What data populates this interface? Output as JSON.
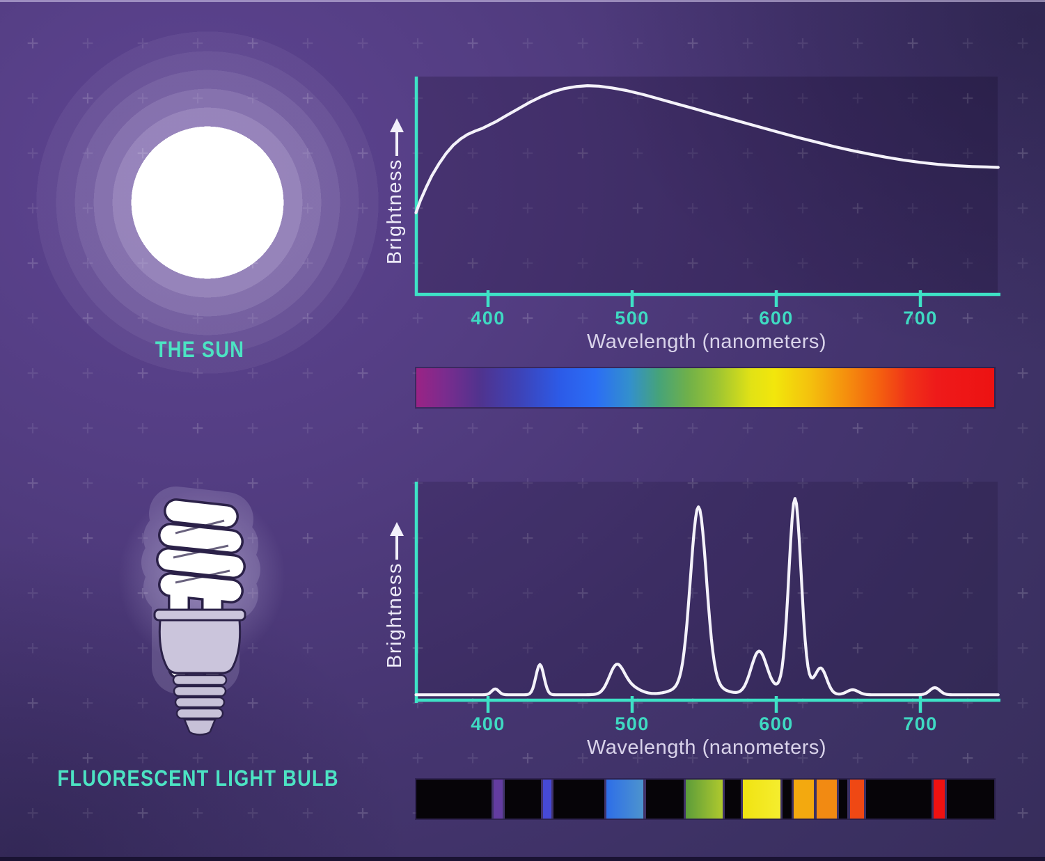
{
  "labels": {
    "sun_title": "THE SUN",
    "bulb_title": "FLUORESCENT LIGHT BULB"
  },
  "colors": {
    "axis": "#3ee2c6",
    "tick_text": "#3fd9c2",
    "curve": "#f4f2fa",
    "title_text": "#4ce3c3",
    "axis_label_text": "#d9d3ea",
    "background_purple": "#4a3878",
    "plot_overlay": "rgba(12,6,34,0.2)"
  },
  "chart_data": [
    {
      "type": "line",
      "name": "sun-spectrum",
      "title": "THE SUN",
      "xlabel": "Wavelength (nanometers)",
      "ylabel": "Brightness",
      "x_ticks": [
        400,
        500,
        600,
        700
      ],
      "x_range_nm": [
        350,
        754
      ],
      "y_range": [
        0,
        1
      ],
      "grid": false,
      "legend": "none",
      "points": [
        [
          350,
          0.375
        ],
        [
          353,
          0.43
        ],
        [
          357,
          0.49
        ],
        [
          361,
          0.545
        ],
        [
          366,
          0.6
        ],
        [
          371,
          0.648
        ],
        [
          376,
          0.686
        ],
        [
          381,
          0.714
        ],
        [
          386,
          0.735
        ],
        [
          391,
          0.75
        ],
        [
          396,
          0.762
        ],
        [
          400,
          0.775
        ],
        [
          406,
          0.795
        ],
        [
          413,
          0.822
        ],
        [
          421,
          0.852
        ],
        [
          429,
          0.882
        ],
        [
          437,
          0.908
        ],
        [
          445,
          0.93
        ],
        [
          453,
          0.945
        ],
        [
          461,
          0.954
        ],
        [
          469,
          0.958
        ],
        [
          477,
          0.956
        ],
        [
          486,
          0.948
        ],
        [
          496,
          0.936
        ],
        [
          508,
          0.917
        ],
        [
          520,
          0.895
        ],
        [
          532,
          0.873
        ],
        [
          544,
          0.851
        ],
        [
          556,
          0.828
        ],
        [
          568,
          0.806
        ],
        [
          580,
          0.784
        ],
        [
          592,
          0.762
        ],
        [
          604,
          0.74
        ],
        [
          616,
          0.719
        ],
        [
          628,
          0.699
        ],
        [
          640,
          0.679
        ],
        [
          652,
          0.661
        ],
        [
          664,
          0.645
        ],
        [
          676,
          0.63
        ],
        [
          688,
          0.617
        ],
        [
          700,
          0.606
        ],
        [
          712,
          0.597
        ],
        [
          724,
          0.591
        ],
        [
          736,
          0.587
        ],
        [
          746,
          0.585
        ],
        [
          754,
          0.583
        ]
      ]
    },
    {
      "type": "line",
      "name": "fluorescent-spectrum",
      "title": "FLUORESCENT LIGHT BULB",
      "xlabel": "Wavelength (nanometers)",
      "ylabel": "Brightness",
      "x_ticks": [
        400,
        500,
        600,
        700
      ],
      "x_range_nm": [
        350,
        754
      ],
      "y_range": [
        0,
        1
      ],
      "grid": false,
      "legend": "none",
      "baseline": 0.006,
      "peaks_nm_height_sigma": [
        [
          405,
          0.028,
          2.5
        ],
        [
          436,
          0.145,
          2.8
        ],
        [
          489,
          0.115,
          5.0
        ],
        [
          496,
          0.045,
          8.0
        ],
        [
          546,
          0.84,
          5.5
        ],
        [
          546,
          0.06,
          13.0
        ],
        [
          588,
          0.205,
          5.5
        ],
        [
          613,
          0.89,
          4.2
        ],
        [
          613,
          0.05,
          11.0
        ],
        [
          631,
          0.115,
          4.0
        ],
        [
          653,
          0.024,
          4.0
        ],
        [
          710,
          0.034,
          3.5
        ]
      ]
    }
  ],
  "spectrum_bars": {
    "continuous": {
      "nm_range": [
        350,
        754
      ],
      "stops": [
        [
          0.0,
          "#9a2385"
        ],
        [
          0.05,
          "#7a2c8e"
        ],
        [
          0.11,
          "#50338e"
        ],
        [
          0.18,
          "#3d43b8"
        ],
        [
          0.25,
          "#2c5be8"
        ],
        [
          0.31,
          "#2b6df5"
        ],
        [
          0.37,
          "#3390cc"
        ],
        [
          0.42,
          "#46a379"
        ],
        [
          0.47,
          "#6fb04a"
        ],
        [
          0.52,
          "#9cc433"
        ],
        [
          0.58,
          "#e2e215"
        ],
        [
          0.62,
          "#f2e60c"
        ],
        [
          0.68,
          "#f4c20d"
        ],
        [
          0.74,
          "#f5920d"
        ],
        [
          0.8,
          "#f4610f"
        ],
        [
          0.85,
          "#f03318"
        ],
        [
          0.9,
          "#ee1a1a"
        ],
        [
          1.0,
          "#ed1212"
        ]
      ]
    },
    "discrete": {
      "background": "#060408",
      "bands": [
        {
          "nm": [
            404,
            410
          ],
          "color": "#633ca0"
        },
        {
          "nm": [
            438,
            444
          ],
          "color": "#4649d6"
        },
        {
          "nm": [
            482,
            508
          ],
          "color": "#2e6ee8",
          "color2": "#4d94ce"
        },
        {
          "nm": [
            537,
            563
          ],
          "color": "#5c9c3a",
          "color2": "#afc92e"
        },
        {
          "nm": [
            577,
            603
          ],
          "color": "#f0e312",
          "color2": "#f5ed2e"
        },
        {
          "nm": [
            612,
            626
          ],
          "color": "#f3a90f"
        },
        {
          "nm": [
            628,
            642
          ],
          "color": "#f28a12"
        },
        {
          "nm": [
            651,
            661
          ],
          "color": "#ef4814"
        },
        {
          "nm": [
            709,
            717
          ],
          "color": "#ee1111"
        }
      ]
    }
  }
}
